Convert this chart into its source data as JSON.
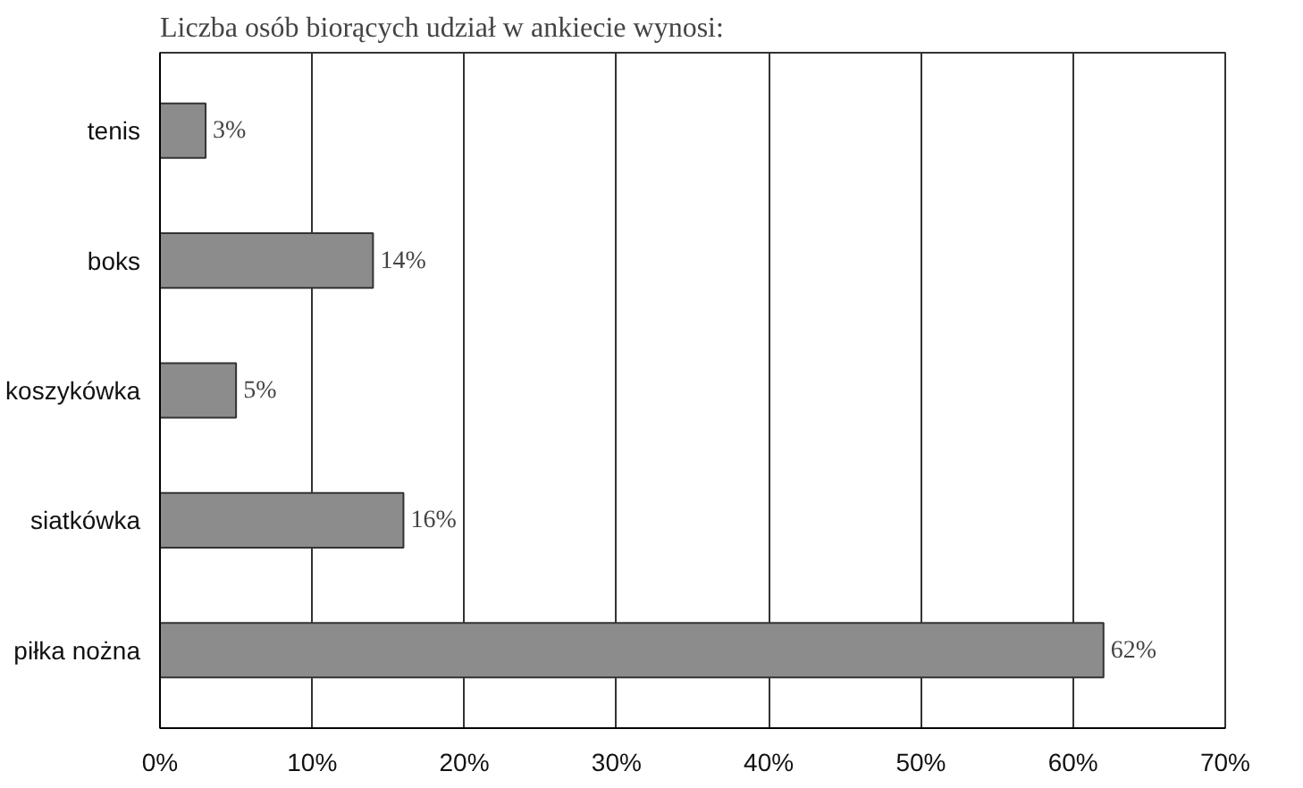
{
  "chart_data": {
    "type": "bar",
    "orientation": "horizontal",
    "title": "Liczba osób biorących udział w ankiecie wynosi:",
    "categories": [
      "tenis",
      "boks",
      "koszykówka",
      "siatkówka",
      "piłka nożna"
    ],
    "values": [
      3,
      14,
      5,
      16,
      62
    ],
    "color": "#8c8c8c",
    "data_labels": true,
    "value_labels": [
      "3%",
      "14%",
      "5%",
      "16%",
      "62%"
    ],
    "xlim": [
      0,
      70
    ],
    "xticks": [
      {
        "value": 0,
        "label": "0%"
      },
      {
        "value": 10,
        "label": "10%"
      },
      {
        "value": 20,
        "label": "20%"
      },
      {
        "value": 30,
        "label": "30%"
      },
      {
        "value": 40,
        "label": "40%"
      },
      {
        "value": 50,
        "label": "50%"
      },
      {
        "value": 60,
        "label": "60%"
      },
      {
        "value": 70,
        "label": "70%"
      }
    ],
    "grid": "x"
  }
}
